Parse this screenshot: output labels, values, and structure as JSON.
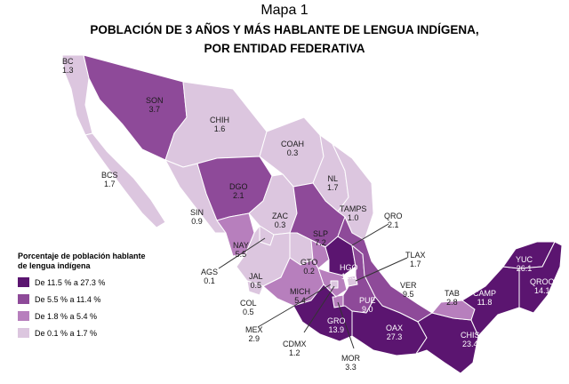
{
  "header": {
    "map_number": "Mapa 1",
    "title_line1": "POBLACIÓN DE 3 AÑOS Y MÁS HABLANTE DE LENGUA INDÍGENA,",
    "title_line2": "POR ENTIDAD FEDERATIVA"
  },
  "colors": {
    "level1": "#dcc6df",
    "level2": "#b77fbd",
    "level3": "#8e4a99",
    "level4": "#5b1570",
    "border": "#ffffff",
    "leader": "#333333"
  },
  "legend": {
    "title": "Porcentaje de población hablante de lengua indígena",
    "items": [
      {
        "label": "De 11.5 % a 27.3 %",
        "color": "#5b1570"
      },
      {
        "label": "De 5.5 % a 11.4 %",
        "color": "#8e4a99"
      },
      {
        "label": "De 1.8 % a 5.4 %",
        "color": "#b77fbd"
      },
      {
        "label": "De 0.1 % a 1.7 %",
        "color": "#dcc6df"
      }
    ]
  },
  "states": [
    {
      "abbr": "BC",
      "value": "1.3"
    },
    {
      "abbr": "SON",
      "value": "3.7"
    },
    {
      "abbr": "CHIH",
      "value": "1.6"
    },
    {
      "abbr": "COAH",
      "value": "0.3"
    },
    {
      "abbr": "BCS",
      "value": "1.7"
    },
    {
      "abbr": "NL",
      "value": "1.7"
    },
    {
      "abbr": "DGO",
      "value": "2.1"
    },
    {
      "abbr": "SIN",
      "value": "0.9"
    },
    {
      "abbr": "TAMPS",
      "value": "1.0"
    },
    {
      "abbr": "ZAC",
      "value": "0.3"
    },
    {
      "abbr": "SLP",
      "value": "7.2"
    },
    {
      "abbr": "QRO",
      "value": "2.1"
    },
    {
      "abbr": "NAY",
      "value": "5.5"
    },
    {
      "abbr": "AGS",
      "value": "0.1"
    },
    {
      "abbr": "JAL",
      "value": "0.5"
    },
    {
      "abbr": "GTO",
      "value": "0.2"
    },
    {
      "abbr": "HGO",
      "value": "11.5"
    },
    {
      "abbr": "TLAX",
      "value": "1.7"
    },
    {
      "abbr": "YUC",
      "value": "26.1"
    },
    {
      "abbr": "QROO",
      "value": "14.1"
    },
    {
      "abbr": "CAMP",
      "value": "11.8"
    },
    {
      "abbr": "TAB",
      "value": "2.8"
    },
    {
      "abbr": "VER",
      "value": "9.5"
    },
    {
      "abbr": "PUE",
      "value": "9.0"
    },
    {
      "abbr": "MICH",
      "value": "5.4"
    },
    {
      "abbr": "COL",
      "value": "0.5"
    },
    {
      "abbr": "MEX",
      "value": "2.9"
    },
    {
      "abbr": "CDMX",
      "value": "1.2"
    },
    {
      "abbr": "MOR",
      "value": "3.3"
    },
    {
      "abbr": "GRO",
      "value": "13.9"
    },
    {
      "abbr": "OAX",
      "value": "27.3"
    },
    {
      "abbr": "CHIS",
      "value": "23.4"
    }
  ]
}
